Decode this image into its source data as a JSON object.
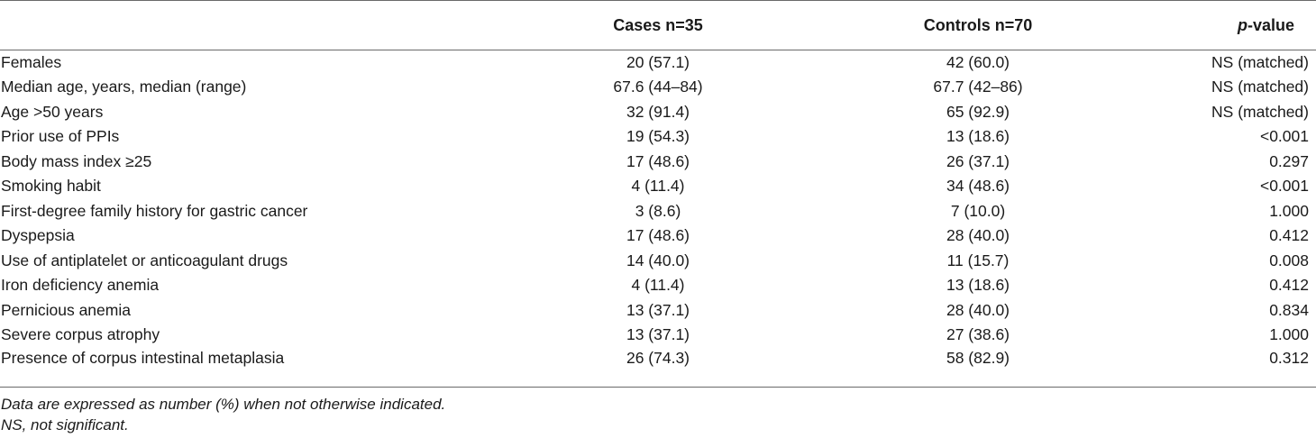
{
  "table": {
    "header": {
      "label": "",
      "cases": "Cases n=35",
      "controls": "Controls n=70",
      "p_prefix": "p",
      "p_suffix": "-value"
    },
    "rows": [
      {
        "label": "Females",
        "cases": "20 (57.1)",
        "controls": "42 (60.0)",
        "p": "NS (matched)"
      },
      {
        "label": "Median age, years, median (range)",
        "cases": "67.6 (44–84)",
        "controls": "67.7 (42–86)",
        "p": "NS (matched)"
      },
      {
        "label": "Age >50 years",
        "cases": "32 (91.4)",
        "controls": "65 (92.9)",
        "p": "NS (matched)"
      },
      {
        "label": "Prior use of PPIs",
        "cases": "19 (54.3)",
        "controls": "13 (18.6)",
        "p": "<0.001"
      },
      {
        "label": "Body mass index ≥25",
        "cases": "17 (48.6)",
        "controls": "26 (37.1)",
        "p": "0.297"
      },
      {
        "label": "Smoking habit",
        "cases": "4 (11.4)",
        "controls": "34 (48.6)",
        "p": "<0.001"
      },
      {
        "label": "First-degree family history for gastric cancer",
        "cases": "3 (8.6)",
        "controls": "7 (10.0)",
        "p": "1.000"
      },
      {
        "label": "Dyspepsia",
        "cases": "17 (48.6)",
        "controls": "28 (40.0)",
        "p": "0.412"
      },
      {
        "label": "Use of antiplatelet or anticoagulant drugs",
        "cases": "14 (40.0)",
        "controls": "11 (15.7)",
        "p": "0.008"
      },
      {
        "label": "Iron deficiency anemia",
        "cases": "4 (11.4)",
        "controls": "13 (18.6)",
        "p": "0.412"
      },
      {
        "label": "Pernicious anemia",
        "cases": "13 (37.1)",
        "controls": "28 (40.0)",
        "p": "0.834"
      },
      {
        "label": "Severe corpus atrophy",
        "cases": "13 (37.1)",
        "controls": "27 (38.6)",
        "p": "1.000"
      },
      {
        "label": "Presence of corpus intestinal metaplasia",
        "cases": "26 (74.3)",
        "controls": "58 (82.9)",
        "p": "0.312"
      }
    ]
  },
  "footnotes": {
    "note1": "Data are expressed as number (%) when not otherwise indicated.",
    "note2": "NS, not significant."
  }
}
